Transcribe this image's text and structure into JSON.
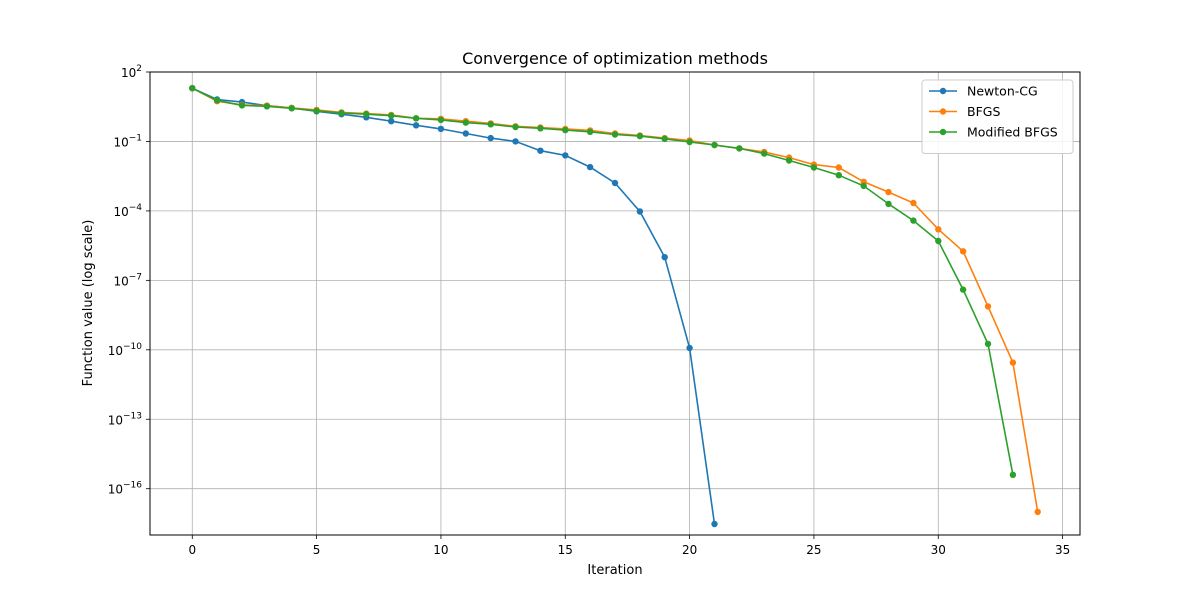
{
  "chart_data": {
    "type": "line",
    "title": "Convergence of optimization methods",
    "xlabel": "Iteration",
    "ylabel": "Function value (log scale)",
    "yscale": "log",
    "xlim": [
      -1.7,
      35.7
    ],
    "ylim": [
      1e-18,
      100.0
    ],
    "xticks": [
      0,
      5,
      10,
      15,
      20,
      25,
      30,
      35
    ],
    "yticks": [
      {
        "value": 100.0,
        "base": "10",
        "exp": "2"
      },
      {
        "value": 0.1,
        "base": "10",
        "exp": "−1"
      },
      {
        "value": 0.0001,
        "base": "10",
        "exp": "−4"
      },
      {
        "value": 1e-07,
        "base": "10",
        "exp": "−7"
      },
      {
        "value": 1e-10,
        "base": "10",
        "exp": "−10"
      },
      {
        "value": 1e-13,
        "base": "10",
        "exp": "−13"
      },
      {
        "value": 1e-16,
        "base": "10",
        "exp": "−16"
      }
    ],
    "grid": true,
    "legend_position": "top-right",
    "series": [
      {
        "name": "Newton-CG",
        "color": "#1f77b4",
        "x": [
          0,
          1,
          2,
          3,
          4,
          5,
          6,
          7,
          8,
          9,
          10,
          11,
          12,
          13,
          14,
          15,
          16,
          17,
          18,
          19,
          20,
          21
        ],
        "y": [
          20,
          6.5,
          5,
          3.5,
          2.8,
          2.0,
          1.5,
          1.1,
          0.75,
          0.5,
          0.35,
          0.22,
          0.14,
          0.1,
          0.04,
          0.025,
          0.0078,
          0.0016,
          9.4e-05,
          1e-06,
          1.2e-10,
          3e-18
        ]
      },
      {
        "name": "BFGS",
        "color": "#ff7f0e",
        "x": [
          0,
          1,
          2,
          3,
          4,
          5,
          6,
          7,
          8,
          9,
          10,
          11,
          12,
          13,
          14,
          15,
          16,
          17,
          18,
          19,
          20,
          21,
          22,
          23,
          24,
          25,
          26,
          27,
          28,
          29,
          30,
          31,
          32,
          33,
          34
        ],
        "y": [
          20,
          5.5,
          3.8,
          3.5,
          2.8,
          2.3,
          1.8,
          1.6,
          1.4,
          1.0,
          0.95,
          0.75,
          0.6,
          0.45,
          0.4,
          0.35,
          0.3,
          0.22,
          0.18,
          0.14,
          0.11,
          0.07,
          0.05,
          0.035,
          0.02,
          0.01,
          0.0075,
          0.0018,
          0.00065,
          0.00022,
          1.6e-05,
          1.8e-06,
          7.5e-09,
          2.8e-11,
          1e-17
        ]
      },
      {
        "name": "Modified BFGS",
        "color": "#2ca02c",
        "x": [
          0,
          1,
          2,
          3,
          4,
          5,
          6,
          7,
          8,
          9,
          10,
          11,
          12,
          13,
          14,
          15,
          16,
          17,
          18,
          19,
          20,
          21,
          22,
          23,
          24,
          25,
          26,
          27,
          28,
          29,
          30,
          31,
          32,
          33
        ],
        "y": [
          20,
          6.0,
          3.6,
          3.3,
          2.7,
          2.1,
          1.7,
          1.5,
          1.3,
          1.0,
          0.85,
          0.65,
          0.55,
          0.42,
          0.37,
          0.31,
          0.26,
          0.2,
          0.17,
          0.13,
          0.095,
          0.07,
          0.05,
          0.03,
          0.015,
          0.0075,
          0.0035,
          0.0012,
          0.0002,
          3.8e-05,
          5e-06,
          4e-08,
          1.8e-10,
          4e-16
        ]
      }
    ]
  }
}
